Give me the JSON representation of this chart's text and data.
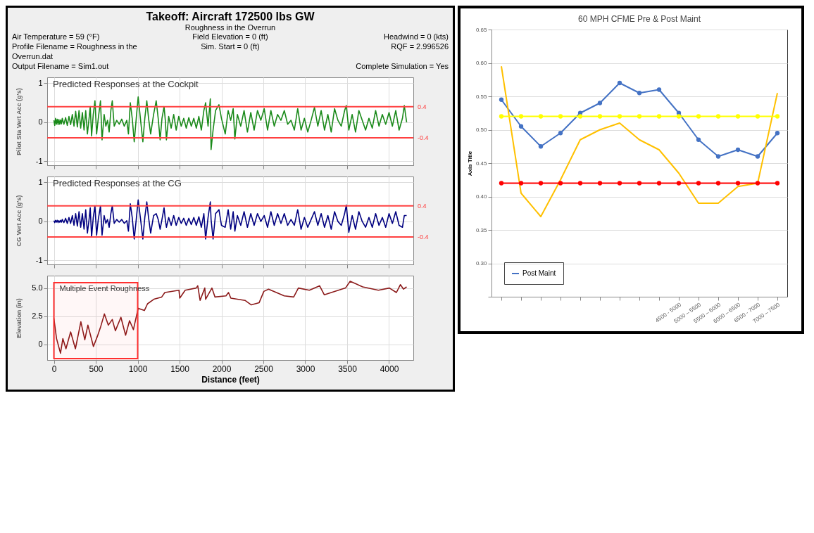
{
  "chart_data": [
    {
      "type": "line",
      "title": "60 MPH CFME  Pre & Post Maint",
      "ylabel": "Axis Title",
      "categories": [
        null,
        null,
        null,
        null,
        null,
        null,
        null,
        null,
        null,
        "4500 - 5000",
        "5000 – 5500",
        "5500 – 6000",
        "6000 – 6500",
        "6500 - 7000",
        "7000 – 7500"
      ],
      "series": [
        {
          "name": "Post Maint",
          "color": "#4472c4",
          "values": [
            0.545,
            0.505,
            0.475,
            0.495,
            0.525,
            0.54,
            0.57,
            0.555,
            0.56,
            0.525,
            0.485,
            0.46,
            0.47,
            0.46,
            0.495
          ]
        },
        {
          "color": "#ffc000",
          "marker": "none",
          "values": [
            0.595,
            0.405,
            0.37,
            0.425,
            0.485,
            0.5,
            0.51,
            0.485,
            0.47,
            0.435,
            0.39,
            0.39,
            0.415,
            0.42,
            0.555
          ]
        },
        {
          "color": "#ffff00",
          "values": [
            0.52,
            0.52,
            0.52,
            0.52,
            0.52,
            0.52,
            0.52,
            0.52,
            0.52,
            0.52,
            0.52,
            0.52,
            0.52,
            0.52,
            0.52
          ]
        },
        {
          "color": "#ff0000",
          "values": [
            0.42,
            0.42,
            0.42,
            0.42,
            0.42,
            0.42,
            0.42,
            0.42,
            0.42,
            0.42,
            0.42,
            0.42,
            0.42,
            0.42,
            0.42
          ]
        }
      ],
      "ylim": [
        0.25,
        0.65
      ],
      "yticks": [
        {
          "value": 0.25,
          "label": null
        },
        {
          "value": 0.3,
          "label": "0.30"
        },
        0.35,
        {
          "value": 0.4,
          "label": "0.40"
        },
        0.45,
        {
          "value": 0.5,
          "label": "0.50"
        },
        0.55,
        {
          "value": 0.6,
          "label": "0.60"
        },
        0.65
      ],
      "grid": "y",
      "legend": "bottom left",
      "marker": "circle",
      "line_style": "solid"
    },
    {
      "type": "line",
      "title": "Takeoff: Aircraft 172500 lbs  GW",
      "subtitle": "Roughness in the Overrun",
      "ylabel": "Pilot Sta Vert Acc (g's)",
      "annotations": [
        "Air Temperature = 59 (°F)",
        "Field Elevation = 0 (ft)",
        "Headwind = 0 (kts)",
        "Profile Filename = Roughness in the Overrun.dat",
        "Sim. Start = 0 (ft)",
        "RQF = 2.996526",
        "Output Filename = Sim1.out",
        "Complete Simulation = Yes",
        "Predicted Responses at the Cockpit"
      ],
      "x": [
        0,
        10,
        20,
        30,
        40,
        50,
        60,
        70,
        80,
        90,
        100,
        120,
        140,
        160,
        180,
        200,
        220,
        240,
        260,
        280,
        300,
        320,
        340,
        360,
        380,
        400,
        420,
        434,
        450,
        470,
        490,
        510,
        530,
        556,
        575,
        600,
        620,
        640,
        660,
        680,
        697,
        720,
        750,
        780,
        810,
        840,
        870,
        890,
        912,
        935,
        959,
        983,
        1006,
        1035,
        1062,
        1085,
        1109,
        1130,
        1155,
        1190,
        1221,
        1245,
        1268,
        1290,
        1315,
        1330,
        1343,
        1370,
        1400,
        1430,
        1460,
        1490,
        1520,
        1550,
        1580,
        1610,
        1640,
        1670,
        1700,
        1730,
        1760,
        1790,
        1811,
        1840,
        1867,
        1876,
        1900,
        1930,
        1970,
        2000,
        2045,
        2080,
        2110,
        2140,
        2160,
        2190,
        2230,
        2270,
        2310,
        2350,
        2390,
        2430,
        2470,
        2510,
        2550,
        2590,
        2630,
        2670,
        2710,
        2750,
        2790,
        2830,
        2870,
        2910,
        2950,
        2990,
        3030,
        3070,
        3110,
        3150,
        3190,
        3230,
        3270,
        3310,
        3350,
        3390,
        3430,
        3470,
        3490,
        3520,
        3560,
        3600,
        3640,
        3680,
        3720,
        3760,
        3800,
        3840,
        3880,
        3920,
        3960,
        4000,
        4040,
        4080,
        4120,
        4160,
        4182,
        4210
      ],
      "series": [
        {
          "color": "#1a8a1a",
          "values": [
            0.05,
            -0.08,
            0.1,
            -0.05,
            0.08,
            -0.06,
            0.07,
            -0.05,
            0.06,
            -0.04,
            0.1,
            -0.05,
            0.12,
            -0.08,
            0.15,
            -0.06,
            0.2,
            -0.1,
            0.28,
            -0.12,
            0.3,
            -0.15,
            0.25,
            -0.2,
            0.3,
            -0.3,
            0.1,
            0.4,
            -0.35,
            0.2,
            0.55,
            -0.3,
            0.1,
            0.55,
            -0.45,
            0.2,
            -0.1,
            0.05,
            -0.25,
            0.3,
            0.55,
            -0.1,
            0.05,
            -0.05,
            0.08,
            -0.1,
            0.05,
            -0.3,
            0.5,
            0.1,
            -0.5,
            0.1,
            0.65,
            0.05,
            -0.5,
            0.1,
            0.55,
            0.1,
            -0.3,
            0.2,
            0.55,
            0.1,
            -0.45,
            0.1,
            0.4,
            0.05,
            -0.45,
            0.15,
            -0.15,
            0.2,
            -0.2,
            0.15,
            -0.1,
            0.1,
            -0.15,
            0.12,
            -0.1,
            0.1,
            -0.15,
            0.15,
            -0.2,
            0.3,
            0.5,
            -0.1,
            0.6,
            -0.7,
            -0.2,
            0.3,
            0.45,
            0.1,
            -0.3,
            0.3,
            0.05,
            0.35,
            -0.43,
            0.2,
            -0.1,
            0.3,
            -0.25,
            0.25,
            -0.2,
            0.3,
            0.05,
            0.35,
            -0.2,
            0.3,
            -0.1,
            0.2,
            0.05,
            0.3,
            -0.05,
            0.05,
            -0.2,
            0.35,
            -0.2,
            0.1,
            -0.25,
            0.05,
            0.38,
            -0.1,
            0.3,
            -0.2,
            0.2,
            -0.25,
            0.35,
            0.05,
            -0.1,
            0.3,
            0.43,
            -0.2,
            0.2,
            -0.25,
            0.3,
            0.05,
            -0.2,
            0.1,
            -0.15,
            0.3,
            -0.1,
            0.2,
            -0.05,
            0.25,
            -0.1,
            0.3,
            -0.2,
            0.1,
            0.43,
            0.0
          ]
        }
      ],
      "xlim": [
        -80,
        4290
      ],
      "xticks": [
        0,
        500,
        1000,
        1500,
        2000,
        2500,
        3000,
        3500,
        4000
      ],
      "ylim": [
        -1.1,
        1.15
      ],
      "yticks": [
        -1,
        0,
        1
      ],
      "ref_lines": [
        {
          "axis": "y",
          "value": 0.4,
          "label": "0.4",
          "color": "#ff4040"
        },
        {
          "axis": "y",
          "value": -0.4,
          "label": "-0.4",
          "color": "#ff4040"
        }
      ],
      "grid": true,
      "tick_labels": "y"
    },
    {
      "type": "line",
      "ylabel": "CG Vert Acc (g's)",
      "annotations": [
        "Predicted Responses at the CG"
      ],
      "x": [
        0,
        10,
        20,
        30,
        40,
        50,
        60,
        70,
        80,
        90,
        100,
        120,
        140,
        160,
        180,
        200,
        220,
        240,
        260,
        280,
        300,
        320,
        340,
        360,
        380,
        400,
        420,
        434,
        450,
        470,
        490,
        510,
        530,
        556,
        575,
        600,
        620,
        640,
        660,
        680,
        697,
        720,
        750,
        780,
        810,
        840,
        870,
        890,
        912,
        935,
        959,
        983,
        1006,
        1035,
        1062,
        1085,
        1109,
        1130,
        1155,
        1190,
        1221,
        1245,
        1268,
        1290,
        1315,
        1330,
        1343,
        1370,
        1400,
        1430,
        1460,
        1490,
        1520,
        1550,
        1580,
        1610,
        1640,
        1670,
        1700,
        1730,
        1760,
        1790,
        1811,
        1840,
        1867,
        1876,
        1900,
        1930,
        1970,
        2000,
        2045,
        2080,
        2110,
        2140,
        2160,
        2190,
        2230,
        2270,
        2310,
        2350,
        2390,
        2430,
        2470,
        2510,
        2550,
        2590,
        2630,
        2670,
        2710,
        2750,
        2790,
        2830,
        2870,
        2910,
        2950,
        2990,
        3030,
        3070,
        3110,
        3150,
        3190,
        3230,
        3270,
        3310,
        3350,
        3390,
        3430,
        3470,
        3490,
        3520,
        3560,
        3600,
        3640,
        3680,
        3720,
        3760,
        3800,
        3840,
        3880,
        3920,
        3960,
        4000,
        4040,
        4080,
        4120,
        4160,
        4182,
        4210
      ],
      "series": [
        {
          "color": "#000080",
          "values": [
            0.02,
            -0.03,
            0.03,
            -0.02,
            0.03,
            -0.03,
            0.02,
            -0.02,
            0.03,
            -0.02,
            0.05,
            -0.03,
            0.08,
            -0.05,
            0.1,
            -0.05,
            0.15,
            -0.1,
            0.2,
            -0.12,
            0.25,
            -0.15,
            0.2,
            -0.2,
            0.3,
            -0.3,
            0.05,
            0.35,
            -0.4,
            0.1,
            0.4,
            -0.35,
            0.05,
            0.4,
            -0.35,
            0.15,
            -0.05,
            0.05,
            -0.15,
            0.2,
            0.4,
            -0.05,
            0.05,
            -0.02,
            0.05,
            -0.05,
            0.02,
            -0.25,
            0.45,
            0.1,
            -0.45,
            0.05,
            0.55,
            0.05,
            -0.45,
            0.1,
            0.5,
            0.1,
            -0.3,
            0.15,
            0.2,
            0.05,
            -0.2,
            0.05,
            0.35,
            0.05,
            -0.15,
            0.1,
            -0.1,
            0.15,
            -0.1,
            0.1,
            -0.05,
            0.08,
            -0.1,
            0.08,
            -0.08,
            0.1,
            -0.1,
            0.12,
            -0.15,
            0.2,
            -0.45,
            0.1,
            0.5,
            0.05,
            -0.45,
            0.2,
            0.3,
            -0.1,
            -0.15,
            0.3,
            -0.2,
            0.25,
            -0.25,
            0.15,
            -0.1,
            0.25,
            -0.15,
            0.2,
            -0.1,
            0.2,
            0,
            0.15,
            -0.15,
            0.25,
            -0.1,
            0.2,
            -0.05,
            0.2,
            -0.1,
            0.05,
            -0.1,
            0.3,
            -0.2,
            0.1,
            -0.15,
            0.05,
            0.25,
            -0.1,
            0.2,
            -0.15,
            0.15,
            -0.2,
            0.25,
            0,
            -0.1,
            0.2,
            0.42,
            -0.28,
            0.15,
            -0.2,
            0.25,
            0,
            -0.15,
            0.1,
            -0.15,
            0.2,
            -0.1,
            0.1,
            -0.15,
            0.2,
            -0.05,
            0.25,
            -0.1,
            -0.15,
            0.15,
            0.15
          ]
        }
      ],
      "xlim": [
        -80,
        4290
      ],
      "xticks": [
        0,
        500,
        1000,
        1500,
        2000,
        2500,
        3000,
        3500,
        4000
      ],
      "ylim": [
        -1.1,
        1.15
      ],
      "yticks": [
        -1,
        0,
        1
      ],
      "ref_lines": [
        {
          "axis": "y",
          "value": 0.4,
          "label": "0.4",
          "color": "#ff4040"
        },
        {
          "axis": "y",
          "value": -0.4,
          "label": "-0.4",
          "color": "#ff4040"
        }
      ],
      "grid": true,
      "tick_labels": "y"
    },
    {
      "type": "line",
      "xlabel": "Distance (feet)",
      "ylabel": "Elevation (in)",
      "x": [
        0,
        32,
        79,
        107,
        144,
        200,
        257,
        322,
        369,
        406,
        472,
        519,
        556,
        603,
        650,
        697,
        734,
        800,
        856,
        903,
        949,
        1006,
        1080,
        1118,
        1193,
        1287,
        1324,
        1493,
        1502,
        1567,
        1698,
        1717,
        1745,
        1801,
        1811,
        1886,
        1923,
        2054,
        2084,
        2112,
        2281,
        2356,
        2450,
        2506,
        2562,
        2749,
        2862,
        2918,
        3049,
        3171,
        3227,
        3480,
        3536,
        3686,
        3873,
        4004,
        4088,
        4135,
        4173,
        4210
      ],
      "series": [
        {
          "color": "#8b1a1a",
          "values": [
            2.3,
            0.5,
            -0.8,
            0.5,
            -0.4,
            1.1,
            -0.4,
            2.0,
            0.4,
            1.7,
            -0.2,
            0.7,
            1.5,
            2.7,
            1.7,
            2.2,
            1.2,
            2.4,
            0.8,
            2.1,
            1.3,
            3.2,
            3.0,
            3.6,
            4.0,
            4.2,
            4.6,
            4.8,
            4.1,
            4.8,
            5.0,
            5.2,
            3.9,
            5.0,
            4.0,
            5.0,
            4.2,
            4.3,
            4.6,
            4.1,
            3.9,
            3.5,
            3.7,
            4.7,
            4.9,
            4.3,
            4.2,
            5.0,
            4.8,
            5.2,
            4.4,
            5.0,
            5.6,
            5.1,
            4.8,
            5.0,
            4.6,
            5.3,
            4.9,
            5.1
          ]
        }
      ],
      "xlim": [
        -80,
        4290
      ],
      "xticks": [
        0,
        500,
        1000,
        1500,
        2000,
        2500,
        3000,
        3500,
        4000
      ],
      "ylim": [
        -1.4,
        6.1
      ],
      "yticks": [
        0,
        2.5,
        {
          "value": 5,
          "label": "5.0"
        }
      ],
      "bands": [
        {
          "axis": "x",
          "from": 0,
          "to": 1000,
          "label": "Multiple Event Roughness",
          "color": "#ff3030"
        }
      ],
      "grid": true
    }
  ]
}
